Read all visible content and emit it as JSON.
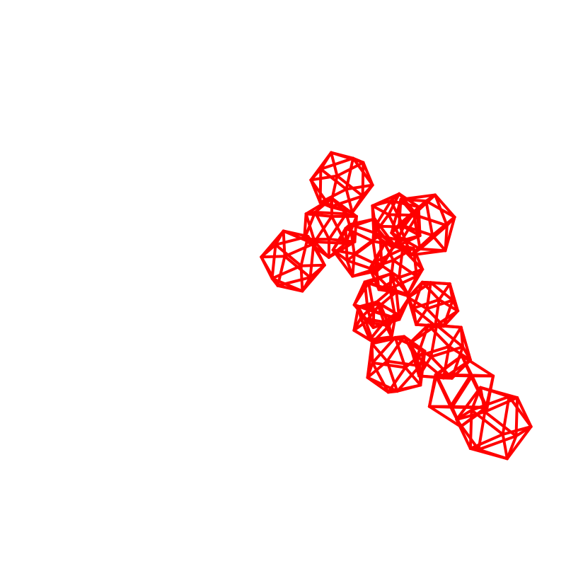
{
  "scene": {
    "background_color": "#ffffff",
    "wire_color": "#ff0000",
    "shape_type": "icosahedron-wireframe-cluster",
    "shape_count": 14
  }
}
